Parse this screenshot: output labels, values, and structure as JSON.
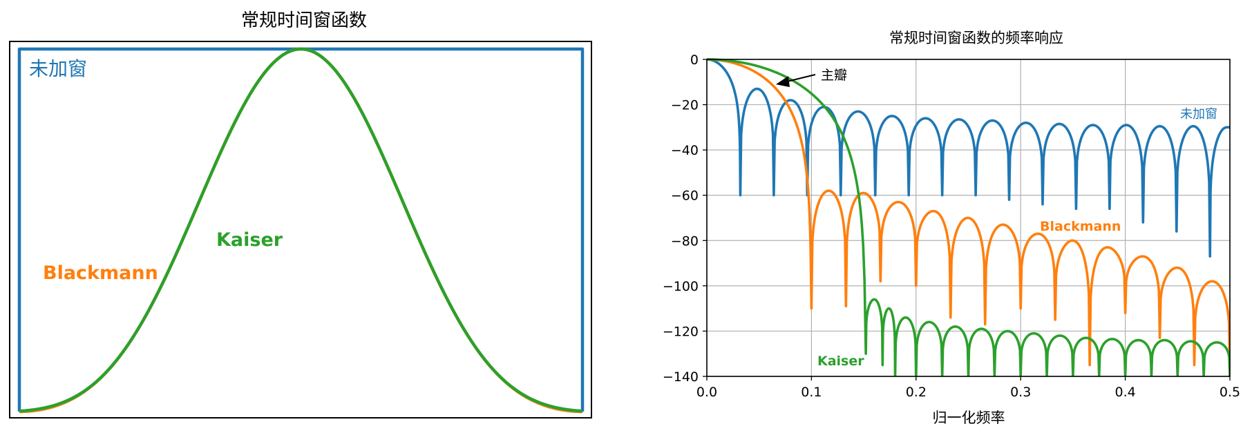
{
  "chart_data": [
    {
      "type": "line",
      "title": "常规时间窗函数",
      "xlabel": "",
      "ylabel": "",
      "xlim": [
        0,
        1
      ],
      "ylim": [
        0,
        1
      ],
      "grid": false,
      "ticks_shown": false,
      "series": [
        {
          "name": "未加窗",
          "color": "#1f77b4",
          "shape": "rectangular"
        },
        {
          "name": "Blackmann",
          "color": "#ff7f0e",
          "shape": "blackman"
        },
        {
          "name": "Kaiser",
          "color": "#2ca02c",
          "shape": "kaiser"
        }
      ],
      "annotations": []
    },
    {
      "type": "line",
      "title": "常规时间窗函数的频率响应",
      "xlabel": "归一化频率",
      "ylabel": "",
      "xlim": [
        0.0,
        0.5
      ],
      "ylim": [
        -140,
        0
      ],
      "grid": true,
      "x_ticks": [
        0.0,
        0.1,
        0.2,
        0.3,
        0.4,
        0.5
      ],
      "x_tick_labels": [
        "0.0",
        "0.1",
        "0.2",
        "0.3",
        "0.4",
        "0.5"
      ],
      "y_ticks": [
        0,
        -20,
        -40,
        -60,
        -80,
        -100,
        -120,
        -140
      ],
      "y_tick_labels": [
        "0",
        "−20",
        "−40",
        "−60",
        "−80",
        "−100",
        "−120",
        "−140"
      ],
      "series": [
        {
          "name": "未加窗",
          "color": "#1f77b4",
          "nulls_x": [
            0.032,
            0.064,
            0.096,
            0.128,
            0.161,
            0.193,
            0.225,
            0.257,
            0.289,
            0.321,
            0.353,
            0.385,
            0.417,
            0.449,
            0.481
          ],
          "nulls_y": [
            -60,
            -60,
            -60,
            -60,
            -60,
            -60,
            -60,
            -60,
            -62,
            -64,
            -66,
            -66,
            -72,
            -76,
            -87
          ],
          "lobe_peaks_x": [
            0.048,
            0.08,
            0.112,
            0.145,
            0.177,
            0.209,
            0.241,
            0.273,
            0.305,
            0.337,
            0.369,
            0.401,
            0.433,
            0.465,
            0.497
          ],
          "lobe_peaks_y": [
            -13,
            -18,
            -21,
            -23,
            -25,
            -26,
            -26.5,
            -27,
            -28,
            -28.5,
            -29,
            -29,
            -29.5,
            -29.5,
            -30
          ]
        },
        {
          "name": "Blackmann",
          "color": "#ff7f0e",
          "mainlobe_null_x": 0.1,
          "nulls_x": [
            0.1,
            0.133,
            0.166,
            0.2,
            0.233,
            0.266,
            0.3,
            0.333,
            0.366,
            0.4,
            0.433,
            0.466,
            0.5
          ],
          "nulls_y": [
            -110,
            -109,
            -98,
            -100,
            -114,
            -117,
            -110,
            -115,
            -135,
            -112,
            -123,
            -135,
            -140
          ],
          "lobe_peaks_x": [
            0.117,
            0.15,
            0.183,
            0.216,
            0.25,
            0.283,
            0.316,
            0.35,
            0.383,
            0.416,
            0.45,
            0.483
          ],
          "lobe_peaks_y": [
            -58,
            -59,
            -63,
            -67,
            -70,
            -73,
            -77,
            -80,
            -83,
            -87,
            -92,
            -98
          ]
        },
        {
          "name": "Kaiser",
          "color": "#2ca02c",
          "mainlobe_null_x": 0.152,
          "nulls_x": [
            0.152,
            0.168,
            0.18,
            0.2,
            0.225,
            0.25,
            0.275,
            0.3,
            0.325,
            0.35,
            0.375,
            0.4,
            0.425,
            0.45,
            0.475,
            0.5
          ],
          "nulls_y": [
            -130,
            -135,
            -140,
            -140,
            -140,
            -140,
            -140,
            -140,
            -140,
            -140,
            -140,
            -140,
            -140,
            -140,
            -140,
            -140
          ],
          "lobe_peaks_x": [
            0.16,
            0.174,
            0.19,
            0.212,
            0.237,
            0.262,
            0.287,
            0.312,
            0.337,
            0.362,
            0.387,
            0.412,
            0.437,
            0.462,
            0.487
          ],
          "lobe_peaks_y": [
            -106,
            -110,
            -114,
            -116,
            -118,
            -119,
            -120,
            -121,
            -122,
            -123,
            -123.5,
            -124,
            -124,
            -124.5,
            -125
          ]
        }
      ],
      "annotations": [
        {
          "text": "主瓣",
          "target_x": 0.066,
          "target_y": -11
        }
      ]
    }
  ]
}
